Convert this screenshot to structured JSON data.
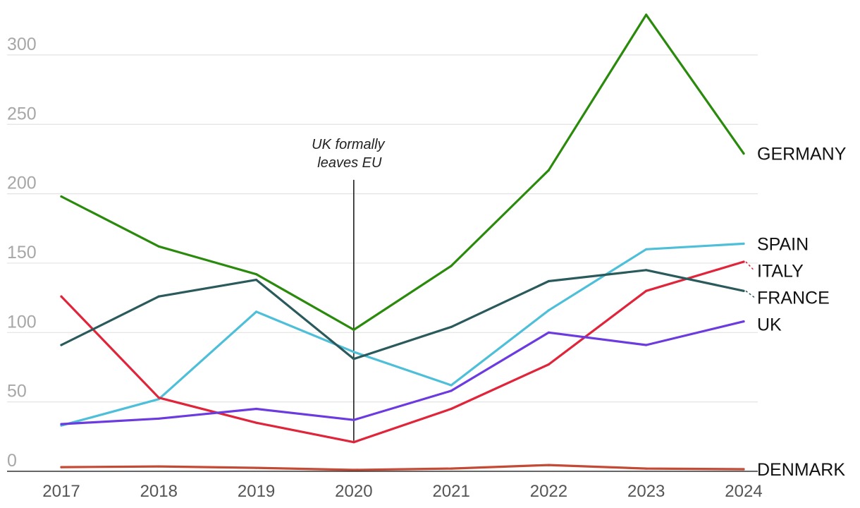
{
  "chart_data": {
    "type": "line",
    "title": "",
    "xlabel": "",
    "ylabel": "",
    "x": [
      "2017",
      "2018",
      "2019",
      "2020",
      "2021",
      "2022",
      "2023",
      "2024"
    ],
    "ylim": [
      0,
      330
    ],
    "y_ticks": [
      "0",
      "50",
      "100",
      "150",
      "200",
      "250",
      "300"
    ],
    "grid": true,
    "annotation": {
      "x": "2020",
      "line1": "UK formally",
      "line2": "leaves EU",
      "y_top": 210,
      "y_bottom": 22
    },
    "series": [
      {
        "name": "GERMANY",
        "color": "#2a8a0c",
        "values": [
          198,
          162,
          142,
          102,
          148,
          217,
          329,
          229
        ]
      },
      {
        "name": "SPAIN",
        "color": "#4dbfd9",
        "values": [
          33,
          52,
          115,
          86,
          62,
          116,
          160,
          164
        ]
      },
      {
        "name": "ITALY",
        "color": "#e0243a",
        "values": [
          126,
          53,
          35,
          21,
          45,
          77,
          130,
          151
        ]
      },
      {
        "name": "FRANCE",
        "color": "#2a5a5b",
        "values": [
          91,
          126,
          138,
          81,
          104,
          137,
          145,
          130
        ]
      },
      {
        "name": "UK",
        "color": "#6c3be0",
        "values": [
          34,
          38,
          45,
          37,
          58,
          100,
          91,
          108
        ]
      },
      {
        "name": "DENMARK",
        "color": "#c44a35",
        "values": [
          3,
          3.5,
          2.5,
          1,
          2,
          4.5,
          2,
          1.5
        ]
      }
    ]
  }
}
